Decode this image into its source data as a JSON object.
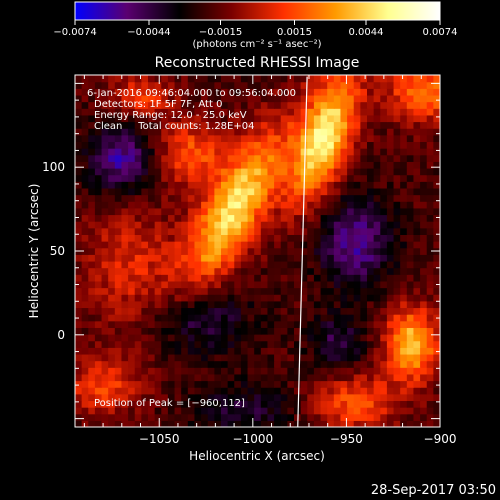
{
  "chart_data": {
    "type": "heatmap",
    "title": "Reconstructed RHESSI Image",
    "xlabel": "Heliocentric X (arcsec)",
    "ylabel": "Heliocentric Y (arcsec)",
    "xlim": [
      -1095,
      -900
    ],
    "ylim": [
      -55,
      155
    ],
    "x_ticks": [
      -1050,
      -1000,
      -950,
      -900
    ],
    "x_tick_labels": [
      "−1050",
      "−1000",
      "−950",
      "−900"
    ],
    "y_ticks": [
      0,
      50,
      100
    ],
    "y_tick_labels": [
      "0",
      "50",
      "100"
    ],
    "colorbar": {
      "min": -0.0074,
      "max": 0.0074,
      "ticks": [
        -0.0074,
        -0.0044,
        -0.0015,
        0.0015,
        0.0044,
        0.0074
      ],
      "tick_labels": [
        "−0.0074",
        "−0.0044",
        "−0.0015",
        "0.0015",
        "0.0044",
        "0.0074"
      ],
      "unit_label": "(photons cm⁻² s⁻¹ asec⁻²)",
      "colors": [
        "#0000ff",
        "#5a0070",
        "#000000",
        "#7a0000",
        "#ff3000",
        "#ff9a00",
        "#ffff90",
        "#ffffff"
      ]
    },
    "annotations": [
      "6-Jan-2016 09:46:04.000 to 09:56:04.000",
      "Detectors: 1F 5F 7F, Att 0",
      "Energy Range: 12.0 - 25.0 keV",
      "Clean     Total counts: 1.28E+04"
    ],
    "peak_label": "Position of Peak = [−960,112]",
    "peak": {
      "x": -960,
      "y": 112
    },
    "limb_line": [
      {
        "x": -971,
        "y": 154
      },
      {
        "x": -976,
        "y": -55
      }
    ],
    "grid": false,
    "sources": [
      {
        "x": -1010,
        "y": 75,
        "sx": 11,
        "sy": 36,
        "rot": 0.45,
        "amp": 0.0067
      },
      {
        "x": -962,
        "y": 118,
        "sx": 10,
        "sy": 28,
        "rot": 0.3,
        "amp": 0.0072
      },
      {
        "x": -1033,
        "y": 108,
        "sx": 13,
        "sy": 14,
        "rot": 0,
        "amp": 0.0035
      },
      {
        "x": -1060,
        "y": 142,
        "sx": 12,
        "sy": 9,
        "rot": 0,
        "amp": 0.0028
      },
      {
        "x": -908,
        "y": 145,
        "sx": 14,
        "sy": 12,
        "rot": 0,
        "amp": 0.0045
      },
      {
        "x": -915,
        "y": -5,
        "sx": 10,
        "sy": 15,
        "rot": 0,
        "amp": 0.006
      },
      {
        "x": -945,
        "y": -40,
        "sx": 16,
        "sy": 12,
        "rot": 0,
        "amp": 0.0035
      },
      {
        "x": -1065,
        "y": 40,
        "sx": 18,
        "sy": 25,
        "rot": 0,
        "amp": 0.0025
      },
      {
        "x": -1080,
        "y": -30,
        "sx": 15,
        "sy": 12,
        "rot": 0,
        "amp": 0.003
      },
      {
        "x": -1070,
        "y": 105,
        "sx": 12,
        "sy": 14,
        "rot": 0,
        "amp": -0.004
      },
      {
        "x": -945,
        "y": 55,
        "sx": 14,
        "sy": 18,
        "rot": 0,
        "amp": -0.0038
      },
      {
        "x": -1030,
        "y": 10,
        "sx": 18,
        "sy": 15,
        "rot": 0,
        "amp": -0.0028
      },
      {
        "x": -955,
        "y": -5,
        "sx": 10,
        "sy": 12,
        "rot": 0,
        "amp": -0.0025
      },
      {
        "x": -1005,
        "y": -45,
        "sx": 20,
        "sy": 12,
        "rot": 0,
        "amp": -0.002
      }
    ]
  },
  "footer_timestamp": "28-Sep-2017 03:50"
}
